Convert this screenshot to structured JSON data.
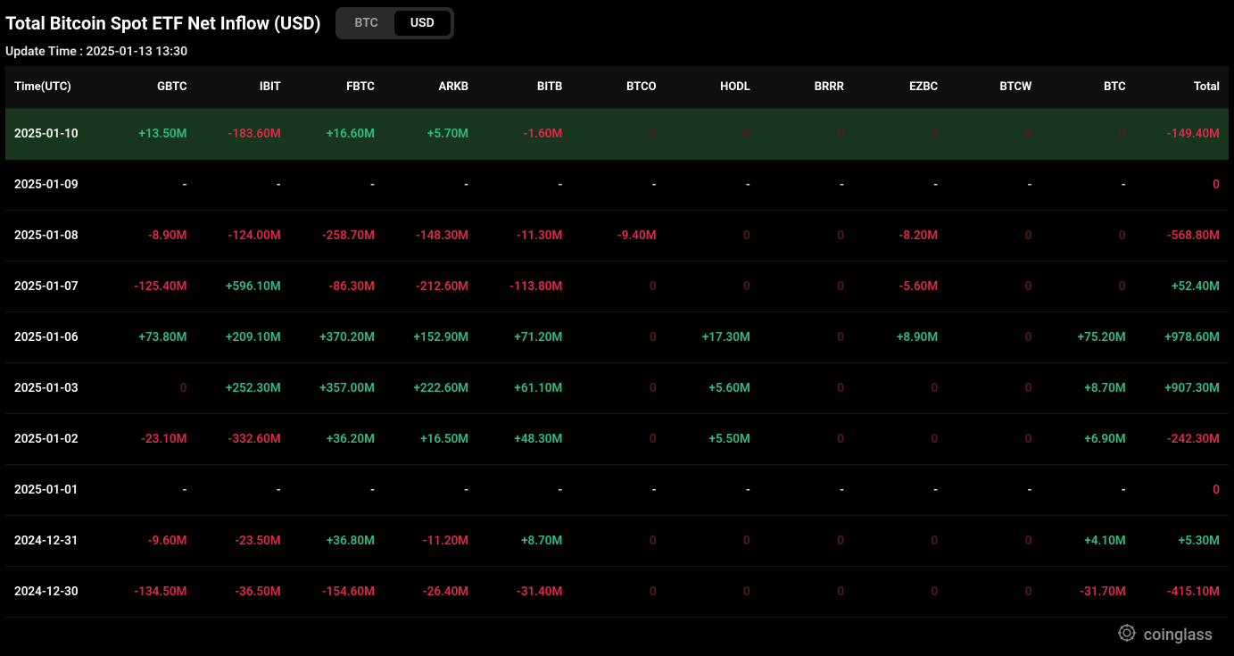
{
  "header": {
    "title": "Total Bitcoin Spot ETF Net Inflow (USD)",
    "toggle": {
      "btc": "BTC",
      "usd": "USD",
      "active": "usd"
    },
    "update_time": "Update Time : 2025-01-13 13:30"
  },
  "table": {
    "columns": [
      "Time(UTC)",
      "GBTC",
      "IBIT",
      "FBTC",
      "ARKB",
      "BITB",
      "BTCO",
      "HODL",
      "BRRR",
      "EZBC",
      "BTCW",
      "BTC",
      "Total"
    ],
    "col_widths": [
      "108px",
      "105px",
      "105px",
      "105px",
      "105px",
      "105px",
      "105px",
      "105px",
      "105px",
      "105px",
      "105px",
      "105px",
      "105px"
    ],
    "rows": [
      {
        "highlight": true,
        "cells": [
          "2025-01-10",
          "+13.50M",
          "-183.60M",
          "+16.60M",
          "+5.70M",
          "-1.60M",
          "0",
          "0",
          "0",
          "0",
          "0",
          "0",
          "-149.40M"
        ]
      },
      {
        "highlight": false,
        "cells": [
          "2025-01-09",
          "-",
          "-",
          "-",
          "-",
          "-",
          "-",
          "-",
          "-",
          "-",
          "-",
          "-",
          "0"
        ]
      },
      {
        "highlight": false,
        "cells": [
          "2025-01-08",
          "-8.90M",
          "-124.00M",
          "-258.70M",
          "-148.30M",
          "-11.30M",
          "-9.40M",
          "0",
          "0",
          "-8.20M",
          "0",
          "0",
          "-568.80M"
        ]
      },
      {
        "highlight": false,
        "cells": [
          "2025-01-07",
          "-125.40M",
          "+596.10M",
          "-86.30M",
          "-212.60M",
          "-113.80M",
          "0",
          "0",
          "0",
          "-5.60M",
          "0",
          "0",
          "+52.40M"
        ]
      },
      {
        "highlight": false,
        "cells": [
          "2025-01-06",
          "+73.80M",
          "+209.10M",
          "+370.20M",
          "+152.90M",
          "+71.20M",
          "0",
          "+17.30M",
          "0",
          "+8.90M",
          "0",
          "+75.20M",
          "+978.60M"
        ]
      },
      {
        "highlight": false,
        "cells": [
          "2025-01-03",
          "0",
          "+252.30M",
          "+357.00M",
          "+222.60M",
          "+61.10M",
          "0",
          "+5.60M",
          "0",
          "0",
          "0",
          "+8.70M",
          "+907.30M"
        ]
      },
      {
        "highlight": false,
        "cells": [
          "2025-01-02",
          "-23.10M",
          "-332.60M",
          "+36.20M",
          "+16.50M",
          "+48.30M",
          "0",
          "+5.50M",
          "0",
          "0",
          "0",
          "+6.90M",
          "-242.30M"
        ]
      },
      {
        "highlight": false,
        "cells": [
          "2025-01-01",
          "-",
          "-",
          "-",
          "-",
          "-",
          "-",
          "-",
          "-",
          "-",
          "-",
          "-",
          "0"
        ]
      },
      {
        "highlight": false,
        "cells": [
          "2024-12-31",
          "-9.60M",
          "-23.50M",
          "+36.80M",
          "-11.20M",
          "+8.70M",
          "0",
          "0",
          "0",
          "0",
          "0",
          "+4.10M",
          "+5.30M"
        ]
      },
      {
        "highlight": false,
        "cells": [
          "2024-12-30",
          "-134.50M",
          "-36.50M",
          "-154.60M",
          "-26.40M",
          "-31.40M",
          "0",
          "0",
          "0",
          "0",
          "0",
          "-31.70M",
          "-415.10M"
        ]
      }
    ]
  },
  "colors": {
    "positive": "#2ebd85",
    "negative": "#e0294a",
    "zero": "#5a1820",
    "dash": "#e8e8e8",
    "bg": "#000000",
    "row_highlight": "#18361d",
    "header_bg": "#0f0f0f",
    "border": "#151515"
  },
  "watermark": {
    "label": "coinglass"
  }
}
